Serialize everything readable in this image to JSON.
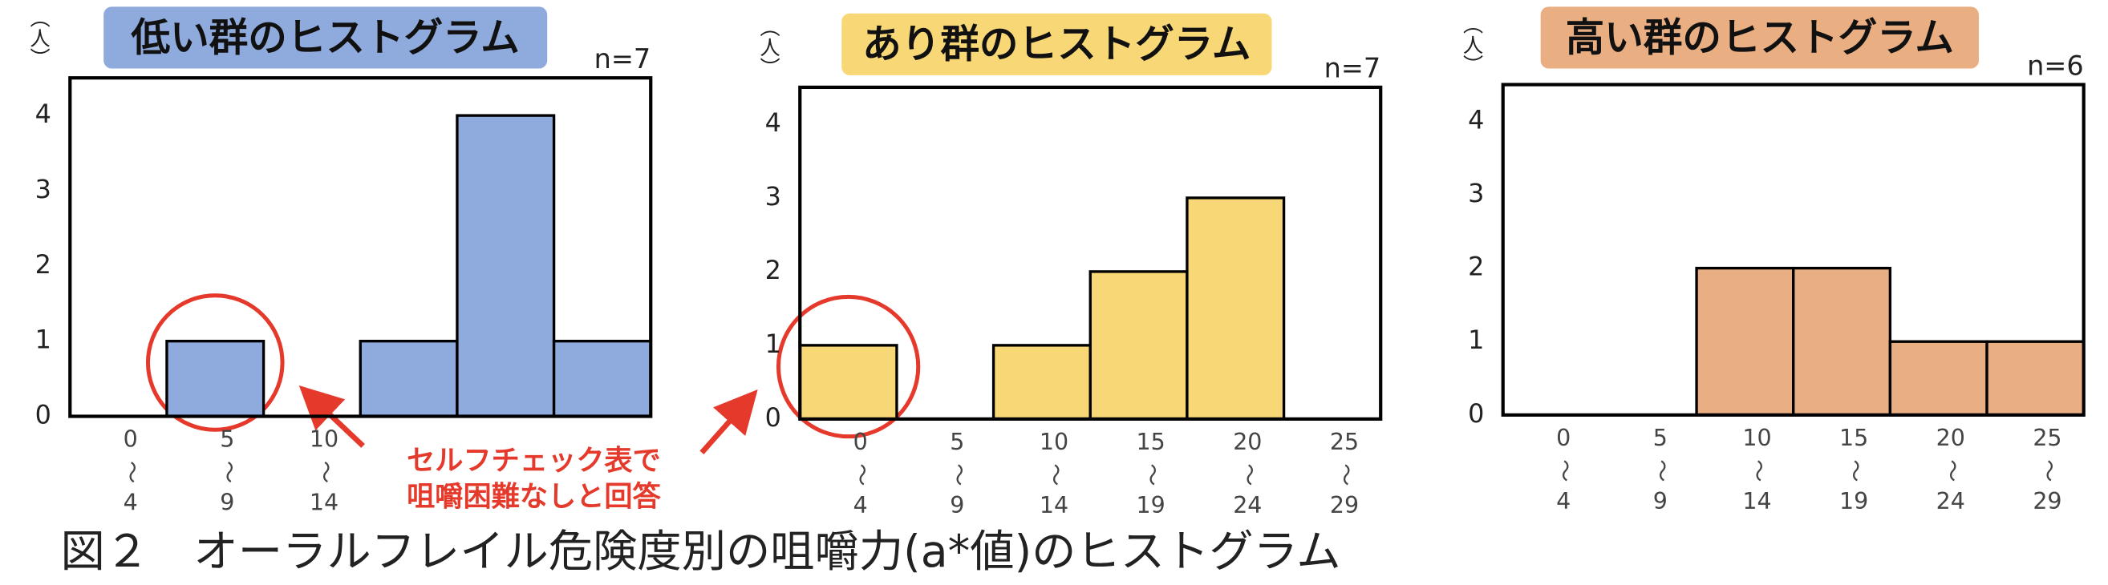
{
  "chart_data": [
    {
      "type": "bar",
      "title": "低い群のヒストグラム",
      "note": "n=7",
      "ylabel": "（人）",
      "categories": [
        [
          "0",
          "〜",
          "4"
        ],
        [
          "5",
          "〜",
          "9"
        ],
        [
          "10",
          "〜",
          "14"
        ],
        null,
        null,
        null
      ],
      "values": [
        0,
        1,
        0,
        1,
        4,
        1
      ],
      "color": "#8faadc",
      "title_bg": "#8faadc",
      "ylim": [
        0,
        4.5
      ],
      "yticks": [
        0,
        1,
        2,
        3,
        4
      ]
    },
    {
      "type": "bar",
      "title": "あり群のヒストグラム",
      "note": "n=7",
      "ylabel": "（人）",
      "categories": [
        [
          "0",
          "〜",
          "4"
        ],
        [
          "5",
          "〜",
          "9"
        ],
        [
          "10",
          "〜",
          "14"
        ],
        [
          "15",
          "〜",
          "19"
        ],
        [
          "20",
          "〜",
          "24"
        ],
        [
          "25",
          "〜",
          "29"
        ]
      ],
      "values": [
        1,
        0,
        1,
        2,
        3,
        0
      ],
      "color": "#f8d776",
      "title_bg": "#f8d776",
      "ylim": [
        0,
        4.5
      ],
      "yticks": [
        0,
        1,
        2,
        3,
        4
      ]
    },
    {
      "type": "bar",
      "title": "高い群のヒストグラム",
      "note": "n=6",
      "ylabel": "（人）",
      "categories": [
        [
          "0",
          "〜",
          "4"
        ],
        [
          "5",
          "〜",
          "9"
        ],
        [
          "10",
          "〜",
          "14"
        ],
        [
          "15",
          "〜",
          "19"
        ],
        [
          "20",
          "〜",
          "24"
        ],
        [
          "25",
          "〜",
          "29"
        ]
      ],
      "values": [
        0,
        0,
        2,
        2,
        1,
        1
      ],
      "color": "#e9ae82",
      "title_bg": "#e9ae82",
      "ylim": [
        0,
        4.5
      ],
      "yticks": [
        0,
        1,
        2,
        3,
        4
      ]
    }
  ],
  "annotation": [
    "セルフチェック表で",
    "咀嚼困難なしと回答"
  ],
  "caption": "図２　オーラルフレイル危険度別の咀嚼力(a*値)のヒストグラム"
}
